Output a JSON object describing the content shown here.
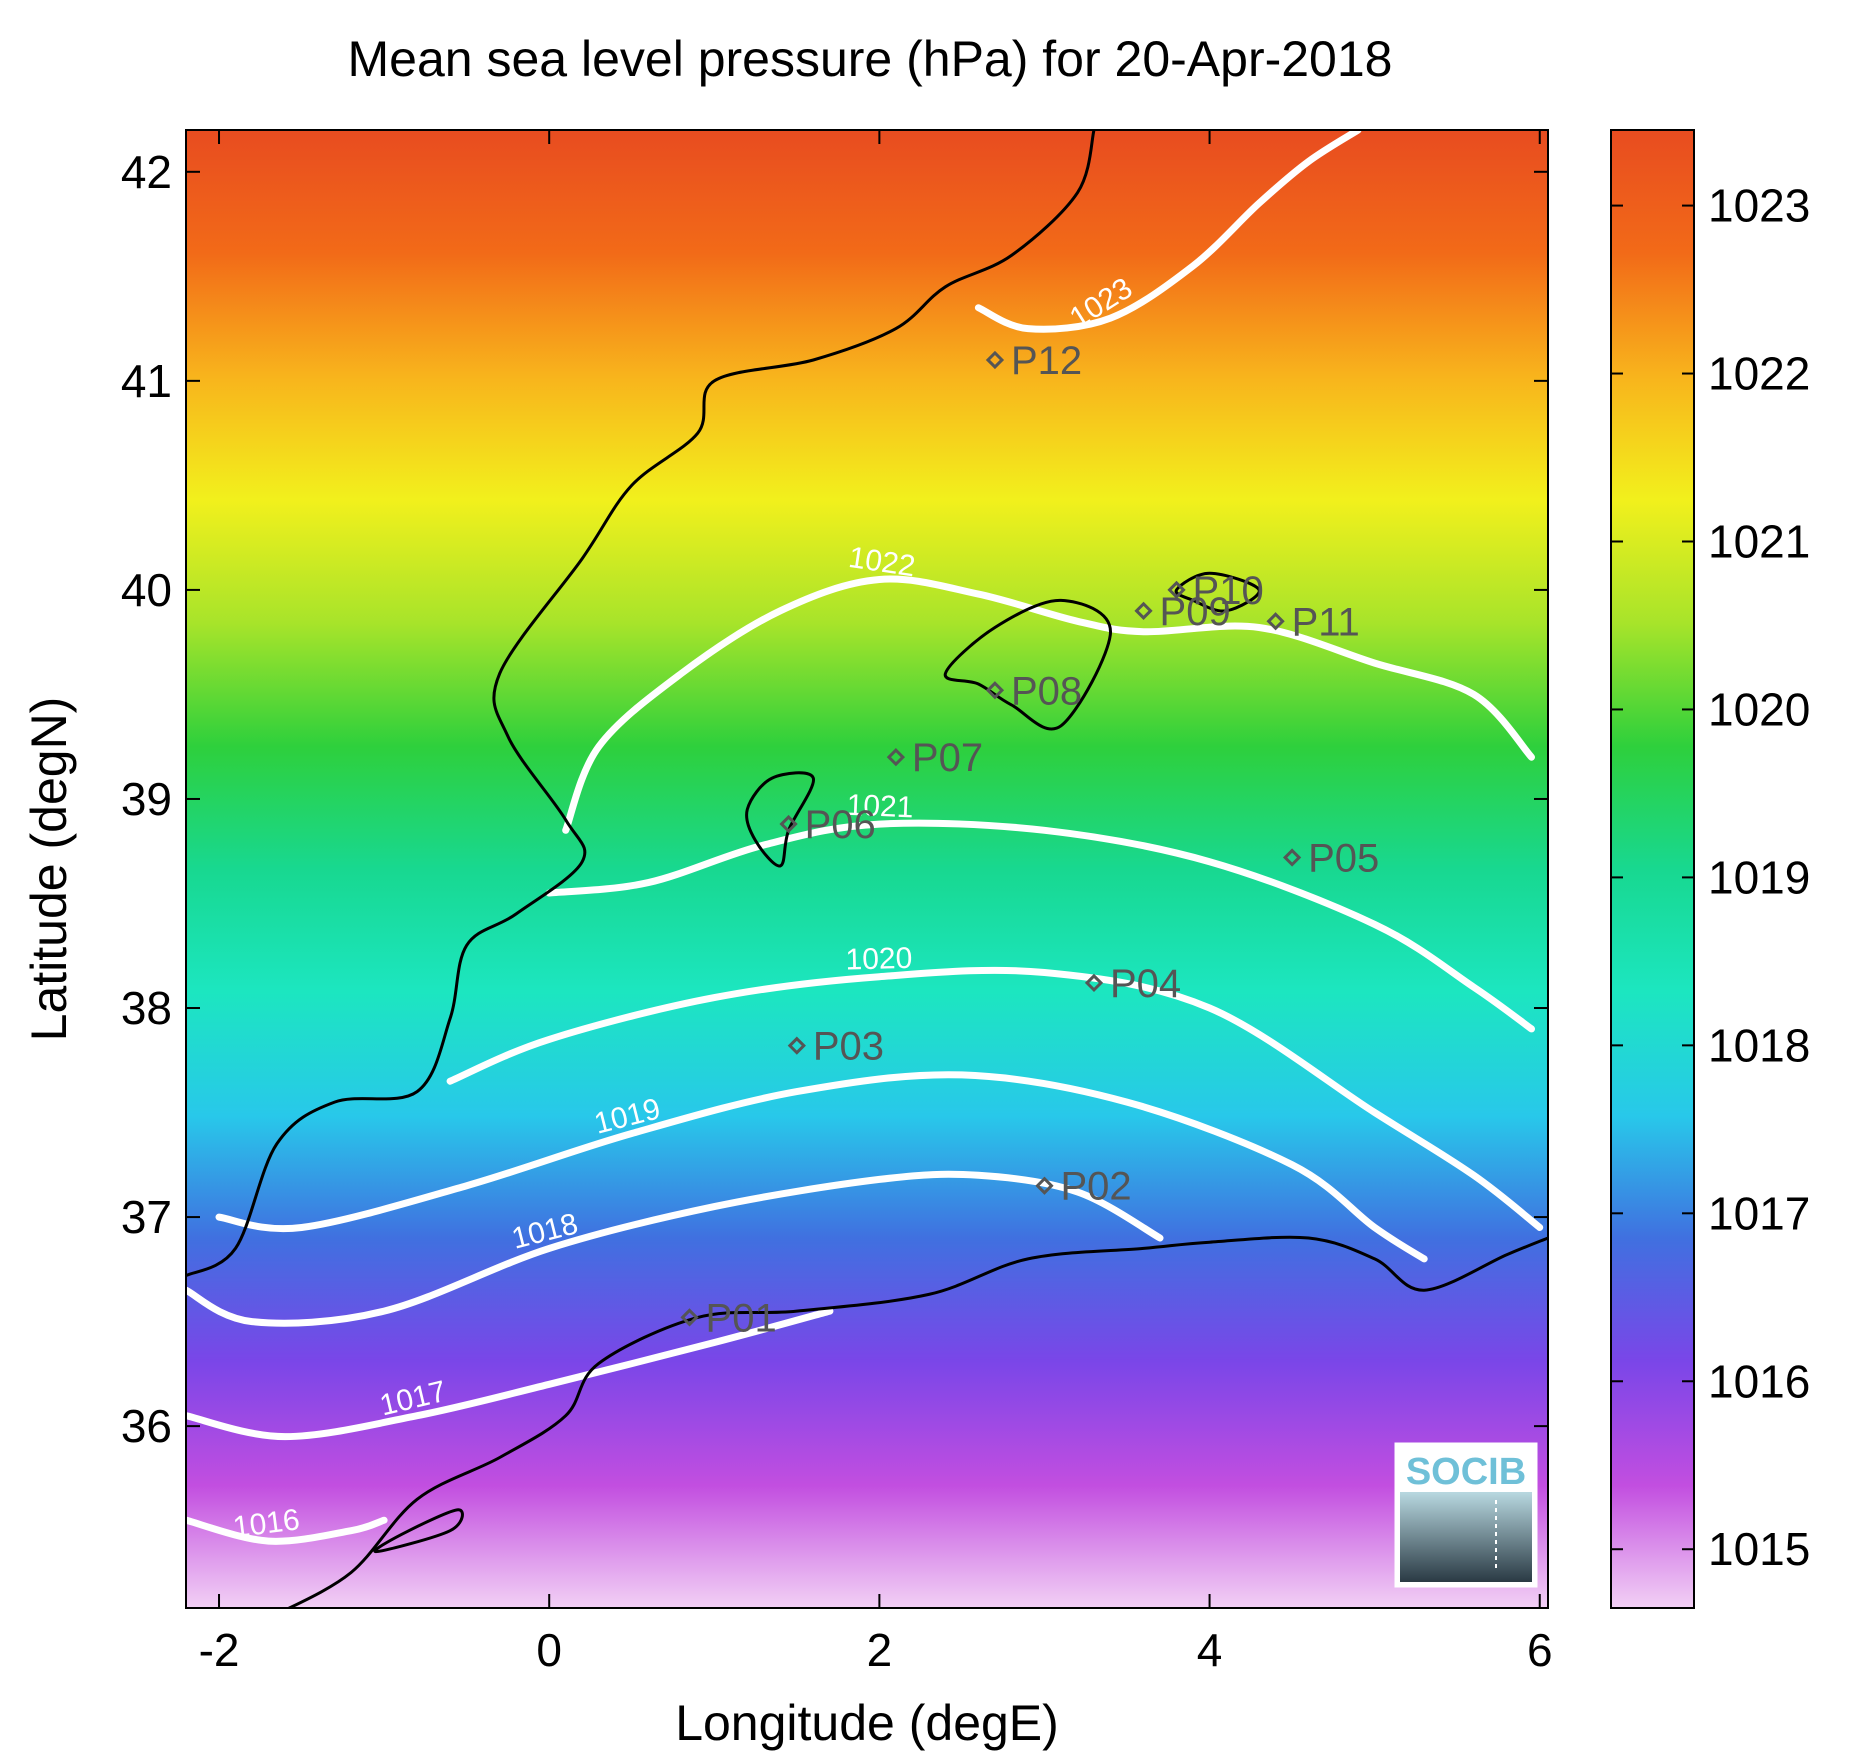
{
  "chart_data": {
    "type": "heatmap",
    "title": "Mean sea level pressure (hPa) for 20-Apr-2018",
    "xlabel": "Longitude (degE)",
    "ylabel": "Latitude (degN)",
    "xlim": [
      -2.2,
      6.05
    ],
    "ylim": [
      35.13,
      42.2
    ],
    "x_ticks": [
      -2,
      0,
      2,
      4,
      6
    ],
    "y_ticks": [
      36,
      37,
      38,
      39,
      40,
      41,
      42
    ],
    "colorbar": {
      "range": [
        1014.65,
        1023.45
      ],
      "ticks": [
        1015,
        1016,
        1017,
        1018,
        1019,
        1020,
        1021,
        1022,
        1023
      ],
      "colormap": [
        "#f2d0f5",
        "#c24ee0",
        "#7a46e8",
        "#4070e0",
        "#28c8ea",
        "#1ce6c0",
        "#18d890",
        "#2ed03c",
        "#a8e42a",
        "#f2f01c",
        "#f8b41c",
        "#f26a18",
        "#e84c20"
      ]
    },
    "contours": [
      {
        "level": 1016,
        "label": "1016",
        "points": [
          [
            -2.2,
            35.55
          ],
          [
            -1.7,
            35.45
          ],
          [
            -1.2,
            35.5
          ],
          [
            -1.0,
            35.55
          ]
        ]
      },
      {
        "level": 1017,
        "label": "1017",
        "points": [
          [
            -2.2,
            36.05
          ],
          [
            -1.6,
            35.95
          ],
          [
            -0.8,
            36.05
          ],
          [
            0.0,
            36.2
          ],
          [
            1.0,
            36.4
          ],
          [
            1.7,
            36.55
          ]
        ]
      },
      {
        "level": 1018,
        "label": "1018",
        "points": [
          [
            -2.2,
            36.65
          ],
          [
            -1.8,
            36.5
          ],
          [
            -1.0,
            36.55
          ],
          [
            0.0,
            36.85
          ],
          [
            1.0,
            37.05
          ],
          [
            2.0,
            37.18
          ],
          [
            2.6,
            37.2
          ],
          [
            3.2,
            37.12
          ],
          [
            3.7,
            36.9
          ]
        ]
      },
      {
        "level": 1019,
        "label": "1019",
        "points": [
          [
            -2.0,
            37.0
          ],
          [
            -1.5,
            36.95
          ],
          [
            -0.5,
            37.15
          ],
          [
            0.5,
            37.4
          ],
          [
            1.5,
            37.6
          ],
          [
            2.5,
            37.68
          ],
          [
            3.5,
            37.55
          ],
          [
            4.5,
            37.25
          ],
          [
            5.0,
            36.95
          ],
          [
            5.3,
            36.8
          ]
        ]
      },
      {
        "level": 1020,
        "label": "1020",
        "points": [
          [
            -0.6,
            37.65
          ],
          [
            0.0,
            37.85
          ],
          [
            1.0,
            38.05
          ],
          [
            2.0,
            38.15
          ],
          [
            3.0,
            38.17
          ],
          [
            4.0,
            38.0
          ],
          [
            5.0,
            37.5
          ],
          [
            5.6,
            37.2
          ],
          [
            6.0,
            36.95
          ]
        ]
      },
      {
        "level": 1021,
        "label": "1021",
        "points": [
          [
            0.0,
            38.55
          ],
          [
            0.6,
            38.6
          ],
          [
            1.3,
            38.78
          ],
          [
            2.0,
            38.88
          ],
          [
            3.0,
            38.85
          ],
          [
            4.0,
            38.7
          ],
          [
            5.0,
            38.4
          ],
          [
            5.6,
            38.1
          ],
          [
            5.95,
            37.9
          ]
        ]
      },
      {
        "level": 1022,
        "label": "1022",
        "points": [
          [
            0.1,
            38.85
          ],
          [
            0.3,
            39.25
          ],
          [
            0.8,
            39.6
          ],
          [
            1.4,
            39.9
          ],
          [
            2.0,
            40.05
          ],
          [
            2.6,
            39.98
          ],
          [
            3.2,
            39.85
          ],
          [
            3.6,
            39.8
          ],
          [
            4.3,
            39.82
          ],
          [
            5.0,
            39.65
          ],
          [
            5.6,
            39.5
          ],
          [
            5.95,
            39.2
          ]
        ]
      },
      {
        "level": 1023,
        "label": "1023",
        "points": [
          [
            2.6,
            41.35
          ],
          [
            2.9,
            41.25
          ],
          [
            3.4,
            41.3
          ],
          [
            3.9,
            41.55
          ],
          [
            4.3,
            41.85
          ],
          [
            4.6,
            42.05
          ],
          [
            4.9,
            42.2
          ]
        ]
      }
    ],
    "stations": [
      {
        "name": "P01",
        "lon": 0.85,
        "lat": 36.52
      },
      {
        "name": "P02",
        "lon": 3.0,
        "lat": 37.15
      },
      {
        "name": "P03",
        "lon": 1.5,
        "lat": 37.82
      },
      {
        "name": "P04",
        "lon": 3.3,
        "lat": 38.12
      },
      {
        "name": "P05",
        "lon": 4.5,
        "lat": 38.72
      },
      {
        "name": "P06",
        "lon": 1.45,
        "lat": 38.88
      },
      {
        "name": "P07",
        "lon": 2.1,
        "lat": 39.2
      },
      {
        "name": "P08",
        "lon": 2.7,
        "lat": 39.52
      },
      {
        "name": "P09",
        "lon": 3.6,
        "lat": 39.9
      },
      {
        "name": "P10",
        "lon": 3.8,
        "lat": 40.0
      },
      {
        "name": "P11",
        "lon": 4.4,
        "lat": 39.85
      },
      {
        "name": "P12",
        "lon": 2.7,
        "lat": 41.1
      }
    ],
    "coastlines": [
      {
        "name": "iberia",
        "points": [
          [
            3.3,
            42.2
          ],
          [
            3.2,
            41.9
          ],
          [
            2.8,
            41.6
          ],
          [
            2.4,
            41.45
          ],
          [
            2.1,
            41.25
          ],
          [
            1.6,
            41.1
          ],
          [
            1.0,
            41.0
          ],
          [
            0.9,
            40.75
          ],
          [
            0.5,
            40.5
          ],
          [
            0.2,
            40.15
          ],
          [
            -0.3,
            39.6
          ],
          [
            -0.25,
            39.3
          ],
          [
            0.1,
            38.9
          ],
          [
            0.2,
            38.7
          ],
          [
            -0.2,
            38.45
          ],
          [
            -0.5,
            38.3
          ],
          [
            -0.6,
            37.95
          ],
          [
            -0.8,
            37.6
          ],
          [
            -1.3,
            37.55
          ],
          [
            -1.65,
            37.35
          ],
          [
            -1.9,
            36.85
          ],
          [
            -2.2,
            36.72
          ]
        ]
      },
      {
        "name": "africa",
        "points": [
          [
            -1.65,
            35.1
          ],
          [
            -1.2,
            35.3
          ],
          [
            -0.8,
            35.65
          ],
          [
            -0.3,
            35.85
          ],
          [
            0.1,
            36.05
          ],
          [
            0.3,
            36.3
          ],
          [
            0.9,
            36.52
          ],
          [
            1.5,
            36.55
          ],
          [
            2.3,
            36.63
          ],
          [
            2.9,
            36.8
          ],
          [
            3.6,
            36.85
          ],
          [
            4.0,
            36.88
          ],
          [
            4.6,
            36.9
          ],
          [
            5.0,
            36.8
          ],
          [
            5.3,
            36.65
          ],
          [
            5.8,
            36.82
          ],
          [
            6.05,
            36.9
          ]
        ]
      },
      {
        "name": "mallorca",
        "closed": true,
        "points": [
          [
            2.4,
            39.6
          ],
          [
            2.7,
            39.82
          ],
          [
            3.1,
            39.95
          ],
          [
            3.4,
            39.8
          ],
          [
            3.1,
            39.35
          ],
          [
            2.8,
            39.45
          ],
          [
            2.6,
            39.55
          ]
        ]
      },
      {
        "name": "menorca",
        "closed": true,
        "points": [
          [
            3.8,
            40.0
          ],
          [
            4.0,
            40.08
          ],
          [
            4.3,
            40.0
          ],
          [
            4.1,
            39.9
          ],
          [
            3.9,
            39.95
          ]
        ]
      },
      {
        "name": "ibiza",
        "closed": true,
        "points": [
          [
            1.2,
            38.95
          ],
          [
            1.35,
            39.1
          ],
          [
            1.6,
            39.1
          ],
          [
            1.45,
            38.85
          ],
          [
            1.4,
            38.68
          ],
          [
            1.25,
            38.8
          ]
        ]
      },
      {
        "name": "alboran-islet",
        "closed": true,
        "points": [
          [
            -1.05,
            35.4
          ],
          [
            -0.85,
            35.5
          ],
          [
            -0.55,
            35.6
          ],
          [
            -0.6,
            35.5
          ]
        ]
      }
    ]
  },
  "logo": {
    "text": "SOCIB"
  }
}
